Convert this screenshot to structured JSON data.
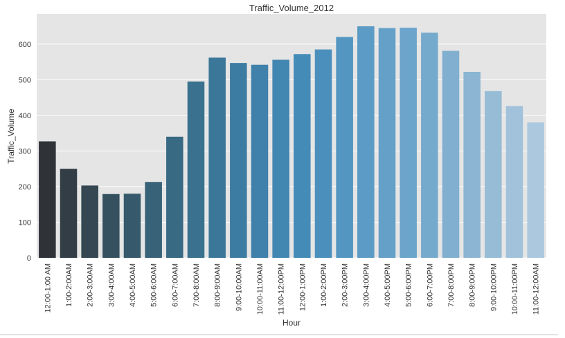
{
  "chart_data": {
    "type": "bar",
    "title": "Traffic_Volume_2012",
    "xlabel": "Hour",
    "ylabel": "Traffic_Volume",
    "ylim": [
      0,
      685
    ],
    "yticks": [
      0,
      100,
      200,
      300,
      400,
      500,
      600
    ],
    "grid": true,
    "categories": [
      "12:00-1:00 AM",
      "1:00-2:00AM",
      "2:00-3:00AM",
      "3:00-4:00AM",
      "4:00-5:00AM",
      "5:00-6:00AM",
      "6:00-7:00AM",
      "7:00-8:00AM",
      "8:00-9:00AM",
      "9:00-10:00AM",
      "10:00-11:00AM",
      "11:00-12:00PM",
      "12:00-1:00PM",
      "1:00-2:00PM",
      "2:00-3:00PM",
      "3:00-4:00PM",
      "4:00-5:00PM",
      "5:00-6:00PM",
      "6:00-7:00PM",
      "7:00-8:00PM",
      "8:00-9:00PM",
      "9:00-10:00PM",
      "10:00-11:00PM",
      "11:00-12:00AM"
    ],
    "values": [
      327,
      250,
      203,
      179,
      180,
      213,
      340,
      495,
      562,
      547,
      542,
      556,
      572,
      585,
      620,
      650,
      645,
      646,
      632,
      581,
      522,
      468,
      426,
      380
    ],
    "colors": [
      "#2f3338",
      "#323d46",
      "#344752",
      "#35505f",
      "#36596b",
      "#376277",
      "#386a83",
      "#39718f",
      "#3a7799",
      "#3d7ca2",
      "#3f81ab",
      "#4286b2",
      "#458bb8",
      "#4b90bd",
      "#5396c1",
      "#5b9bc5",
      "#64a0c8",
      "#6ca5cb",
      "#76aacd",
      "#80afcf",
      "#8bb5d2",
      "#96bcd6",
      "#a1c2da",
      "#abc8de"
    ]
  }
}
